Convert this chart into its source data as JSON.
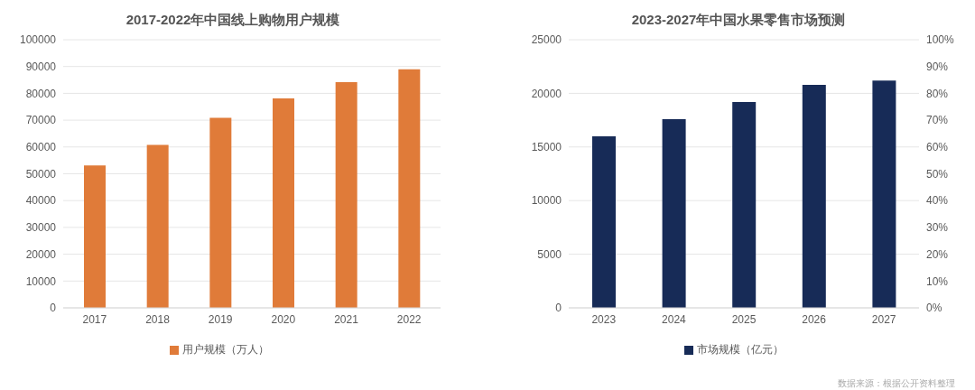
{
  "chart_data": [
    {
      "type": "bar",
      "title": "2017-2022年中国线上购物用户规模",
      "categories": [
        "2017",
        "2018",
        "2019",
        "2020",
        "2021",
        "2022"
      ],
      "series": [
        {
          "name": "用户规模（万人）",
          "color": "#e07b39",
          "values": [
            53100,
            60800,
            70900,
            78100,
            84200,
            89000
          ]
        }
      ],
      "ylim": [
        0,
        100000
      ],
      "yticks": [
        0,
        10000,
        20000,
        30000,
        40000,
        50000,
        60000,
        70000,
        80000,
        90000,
        100000
      ],
      "grid": "y",
      "legend": "bottom"
    },
    {
      "type": "bar",
      "title": "2023-2027年中国水果零售市场预测",
      "categories": [
        "2023",
        "2024",
        "2025",
        "2026",
        "2027"
      ],
      "series": [
        {
          "name": "市场规模（亿元）",
          "color": "#172b57",
          "values": [
            16000,
            17600,
            19200,
            20800,
            21200
          ]
        }
      ],
      "ylim": [
        0,
        25000
      ],
      "yticks": [
        0,
        5000,
        10000,
        15000,
        20000,
        25000
      ],
      "y2lim": [
        0,
        100
      ],
      "y2ticks": [
        {
          "value": 0,
          "label": "0%"
        },
        {
          "value": 10,
          "label": "10%"
        },
        {
          "value": 20,
          "label": "20%"
        },
        {
          "value": 30,
          "label": "30%"
        },
        {
          "value": 40,
          "label": "40%"
        },
        {
          "value": 50,
          "label": "50%"
        },
        {
          "value": 60,
          "label": "60%"
        },
        {
          "value": 70,
          "label": "70%"
        },
        {
          "value": 80,
          "label": "80%"
        },
        {
          "value": 90,
          "label": "90%"
        },
        {
          "value": 100,
          "label": "100%"
        }
      ],
      "grid": "y",
      "legend": "bottom",
      "annotations": [
        "数据来源：根据公开资料整理"
      ]
    }
  ]
}
